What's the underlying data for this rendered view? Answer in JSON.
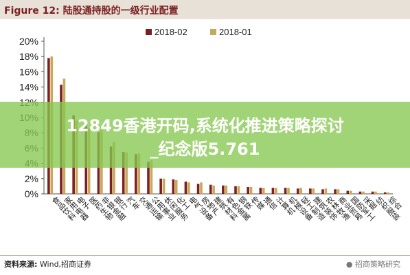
{
  "title": "Figure 12:  陆股通持股的一级行业配置",
  "banner": {
    "line1": "12849香港开码,系统化推进策略探讨",
    "line2": "_纪念版5.761"
  },
  "source": {
    "label": "资料来源:",
    "text": "Wind,招商证券"
  },
  "watermark": "招商策略研究",
  "colors": {
    "series_a": "#7b1f1f",
    "series_b": "#c8a85a",
    "header_bg": "#e8e1d8",
    "banner": "#87c850"
  },
  "chart_data": {
    "type": "bar",
    "title": "",
    "xlabel": "",
    "ylabel": "",
    "ylim": [
      0,
      20
    ],
    "yticks": [
      "0%",
      "2%",
      "4%",
      "6%",
      "8%",
      "10%",
      "12%",
      "14%",
      "16%",
      "18%",
      "20%"
    ],
    "categories": [
      "食品饮料",
      "家用电器",
      "电子",
      "医药生物",
      "非银金融",
      "银行",
      "汽车",
      "交通运输",
      "公用事业",
      "休闲服务",
      "化工",
      "电气设备",
      "房地产",
      "建筑材料",
      "有色金属",
      "钢铁",
      "传媒",
      "通信",
      "计算机",
      "机械设备",
      "轻工制造",
      "建筑装饰",
      "农林牧渔",
      "商业贸易",
      "国防军工",
      "采掘",
      "纺织服装",
      "综合"
    ],
    "legend_position": "top",
    "series": [
      {
        "name": "2018-02",
        "values": [
          17.8,
          14.3,
          10.3,
          9.2,
          8.1,
          6.2,
          5.5,
          5.2,
          4.2,
          2.0,
          1.9,
          1.6,
          1.3,
          1.2,
          1.1,
          1.0,
          0.9,
          0.8,
          0.8,
          0.8,
          0.7,
          0.7,
          0.6,
          0.6,
          0.4,
          0.3,
          0.3,
          0.2
        ]
      },
      {
        "name": "2018-01",
        "values": [
          18.0,
          15.1,
          9.6,
          8.6,
          8.4,
          6.8,
          5.4,
          5.3,
          4.4,
          2.0,
          1.8,
          1.5,
          1.5,
          1.1,
          1.1,
          1.0,
          0.9,
          0.8,
          0.8,
          0.8,
          0.8,
          0.7,
          0.7,
          0.6,
          0.4,
          0.3,
          0.3,
          0.2
        ]
      }
    ]
  }
}
